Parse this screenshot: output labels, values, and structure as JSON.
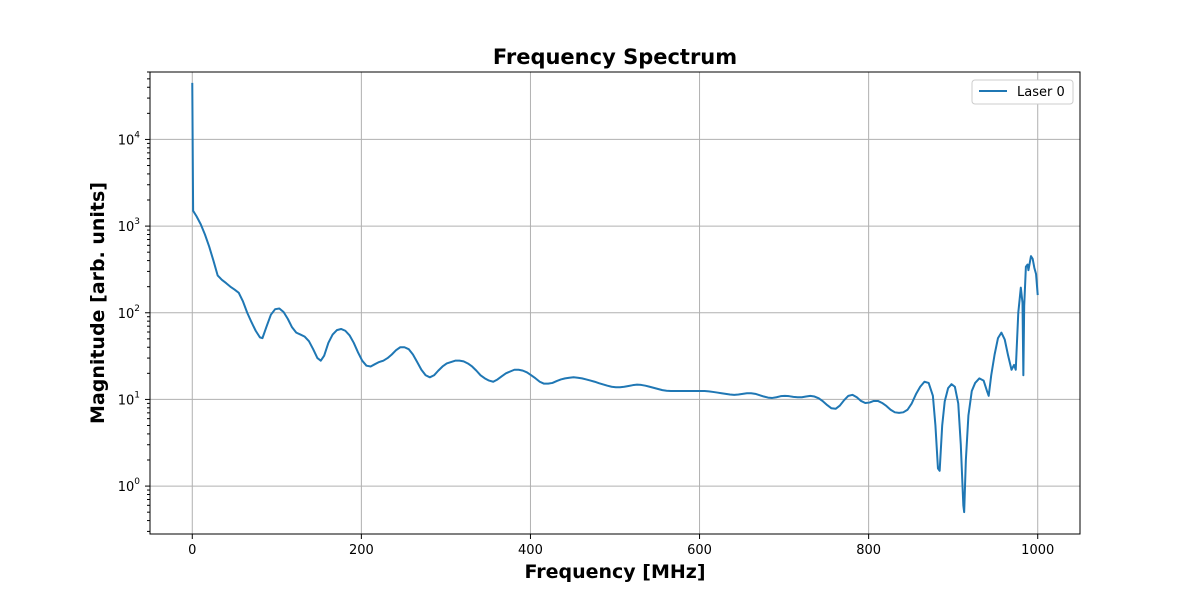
{
  "chart_data": {
    "type": "line",
    "title": "Frequency Spectrum",
    "xlabel": "Frequency [MHz]",
    "ylabel": "Magnitude [arb. units]",
    "xlim": [
      -50,
      1050
    ],
    "ylim": [
      0.28,
      60000
    ],
    "yscale": "log",
    "grid": true,
    "legend_position": "top-right",
    "x_ticks": [
      0,
      200,
      400,
      600,
      800,
      1000
    ],
    "y_ticks": [
      1,
      10,
      100,
      1000,
      10000
    ],
    "y_tick_labels": [
      {
        "base": "10",
        "exp": "0"
      },
      {
        "base": "10",
        "exp": "1"
      },
      {
        "base": "10",
        "exp": "2"
      },
      {
        "base": "10",
        "exp": "3"
      },
      {
        "base": "10",
        "exp": "4"
      }
    ],
    "series": [
      {
        "name": "Laser 0",
        "color": "#1f77b4",
        "points": [
          [
            0,
            45000
          ],
          [
            1,
            1500
          ],
          [
            5,
            1300
          ],
          [
            10,
            1050
          ],
          [
            15,
            800
          ],
          [
            20,
            580
          ],
          [
            25,
            400
          ],
          [
            30,
            270
          ],
          [
            35,
            240
          ],
          [
            40,
            220
          ],
          [
            45,
            200
          ],
          [
            50,
            185
          ],
          [
            55,
            170
          ],
          [
            60,
            135
          ],
          [
            65,
            100
          ],
          [
            70,
            78
          ],
          [
            75,
            62
          ],
          [
            80,
            52
          ],
          [
            83,
            51
          ],
          [
            88,
            70
          ],
          [
            93,
            95
          ],
          [
            98,
            110
          ],
          [
            103,
            112
          ],
          [
            108,
            102
          ],
          [
            113,
            85
          ],
          [
            118,
            68
          ],
          [
            123,
            59
          ],
          [
            128,
            56
          ],
          [
            133,
            53
          ],
          [
            138,
            47
          ],
          [
            143,
            38
          ],
          [
            148,
            30
          ],
          [
            152,
            28
          ],
          [
            156,
            32
          ],
          [
            161,
            45
          ],
          [
            166,
            56
          ],
          [
            171,
            63
          ],
          [
            176,
            65
          ],
          [
            181,
            62
          ],
          [
            186,
            55
          ],
          [
            191,
            45
          ],
          [
            196,
            35
          ],
          [
            201,
            28
          ],
          [
            206,
            24.5
          ],
          [
            211,
            24
          ],
          [
            216,
            25.5
          ],
          [
            221,
            27
          ],
          [
            226,
            28
          ],
          [
            231,
            30
          ],
          [
            236,
            33
          ],
          [
            241,
            37
          ],
          [
            246,
            40
          ],
          [
            251,
            40
          ],
          [
            256,
            38
          ],
          [
            261,
            33
          ],
          [
            266,
            27
          ],
          [
            271,
            22
          ],
          [
            276,
            19
          ],
          [
            281,
            18
          ],
          [
            286,
            19
          ],
          [
            291,
            21.5
          ],
          [
            296,
            24
          ],
          [
            301,
            26
          ],
          [
            306,
            27
          ],
          [
            311,
            28
          ],
          [
            316,
            28
          ],
          [
            321,
            27.5
          ],
          [
            326,
            26
          ],
          [
            331,
            24
          ],
          [
            336,
            21.5
          ],
          [
            341,
            19
          ],
          [
            346,
            17.5
          ],
          [
            351,
            16.5
          ],
          [
            356,
            16
          ],
          [
            361,
            17
          ],
          [
            366,
            18.5
          ],
          [
            371,
            20
          ],
          [
            376,
            21
          ],
          [
            381,
            22
          ],
          [
            386,
            22
          ],
          [
            391,
            21.5
          ],
          [
            396,
            20.5
          ],
          [
            401,
            19
          ],
          [
            406,
            17.5
          ],
          [
            411,
            16
          ],
          [
            416,
            15.2
          ],
          [
            421,
            15.2
          ],
          [
            426,
            15.5
          ],
          [
            431,
            16.3
          ],
          [
            436,
            17
          ],
          [
            441,
            17.5
          ],
          [
            446,
            17.8
          ],
          [
            451,
            18
          ],
          [
            456,
            17.8
          ],
          [
            461,
            17.5
          ],
          [
            466,
            17
          ],
          [
            471,
            16.5
          ],
          [
            476,
            16
          ],
          [
            481,
            15.4
          ],
          [
            486,
            14.9
          ],
          [
            491,
            14.4
          ],
          [
            496,
            14
          ],
          [
            501,
            13.8
          ],
          [
            506,
            13.8
          ],
          [
            511,
            14
          ],
          [
            516,
            14.3
          ],
          [
            521,
            14.6
          ],
          [
            526,
            14.8
          ],
          [
            531,
            14.7
          ],
          [
            536,
            14.4
          ],
          [
            541,
            14
          ],
          [
            546,
            13.6
          ],
          [
            551,
            13.2
          ],
          [
            556,
            12.8
          ],
          [
            561,
            12.6
          ],
          [
            566,
            12.5
          ],
          [
            571,
            12.5
          ],
          [
            576,
            12.5
          ],
          [
            581,
            12.5
          ],
          [
            586,
            12.5
          ],
          [
            591,
            12.5
          ],
          [
            596,
            12.5
          ],
          [
            601,
            12.5
          ],
          [
            606,
            12.5
          ],
          [
            611,
            12.4
          ],
          [
            616,
            12.2
          ],
          [
            621,
            12
          ],
          [
            626,
            11.8
          ],
          [
            631,
            11.6
          ],
          [
            636,
            11.4
          ],
          [
            641,
            11.3
          ],
          [
            646,
            11.4
          ],
          [
            651,
            11.6
          ],
          [
            656,
            11.8
          ],
          [
            661,
            11.8
          ],
          [
            666,
            11.6
          ],
          [
            671,
            11.2
          ],
          [
            676,
            10.8
          ],
          [
            681,
            10.5
          ],
          [
            686,
            10.4
          ],
          [
            691,
            10.6
          ],
          [
            696,
            10.9
          ],
          [
            701,
            11
          ],
          [
            706,
            10.9
          ],
          [
            711,
            10.7
          ],
          [
            716,
            10.6
          ],
          [
            721,
            10.6
          ],
          [
            726,
            10.8
          ],
          [
            731,
            11
          ],
          [
            736,
            10.8
          ],
          [
            741,
            10.3
          ],
          [
            746,
            9.5
          ],
          [
            751,
            8.6
          ],
          [
            756,
            7.9
          ],
          [
            761,
            7.8
          ],
          [
            766,
            8.5
          ],
          [
            771,
            9.8
          ],
          [
            776,
            11
          ],
          [
            781,
            11.3
          ],
          [
            786,
            10.6
          ],
          [
            791,
            9.6
          ],
          [
            796,
            9.1
          ],
          [
            801,
            9.2
          ],
          [
            806,
            9.6
          ],
          [
            811,
            9.6
          ],
          [
            816,
            9.1
          ],
          [
            821,
            8.4
          ],
          [
            826,
            7.6
          ],
          [
            831,
            7.1
          ],
          [
            836,
            7
          ],
          [
            841,
            7.1
          ],
          [
            846,
            7.6
          ],
          [
            851,
            9
          ],
          [
            856,
            11.5
          ],
          [
            861,
            14
          ],
          [
            866,
            16
          ],
          [
            871,
            15.5
          ],
          [
            876,
            11
          ],
          [
            879,
            5
          ],
          [
            882,
            1.6
          ],
          [
            884,
            1.5
          ],
          [
            887,
            5
          ],
          [
            890,
            9.5
          ],
          [
            894,
            13.5
          ],
          [
            898,
            15
          ],
          [
            902,
            14
          ],
          [
            906,
            9
          ],
          [
            909,
            3
          ],
          [
            912,
            0.6
          ],
          [
            913,
            0.5
          ],
          [
            915,
            2
          ],
          [
            918,
            6.5
          ],
          [
            922,
            12.5
          ],
          [
            926,
            15.5
          ],
          [
            931,
            17.5
          ],
          [
            936,
            16.5
          ],
          [
            940,
            12.5
          ],
          [
            942,
            11
          ],
          [
            945,
            19
          ],
          [
            949,
            33
          ],
          [
            953,
            51
          ],
          [
            957,
            59
          ],
          [
            961,
            49
          ],
          [
            965,
            32
          ],
          [
            969,
            22
          ],
          [
            972,
            25
          ],
          [
            974,
            22
          ],
          [
            977,
            100
          ],
          [
            980,
            195
          ],
          [
            982,
            130
          ],
          [
            983,
            19
          ],
          [
            984,
            120
          ],
          [
            986,
            340
          ],
          [
            988,
            360
          ],
          [
            989,
            310
          ],
          [
            990,
            350
          ],
          [
            992,
            450
          ],
          [
            994,
            420
          ],
          [
            996,
            330
          ],
          [
            998,
            280
          ],
          [
            1000,
            160
          ]
        ]
      }
    ]
  }
}
